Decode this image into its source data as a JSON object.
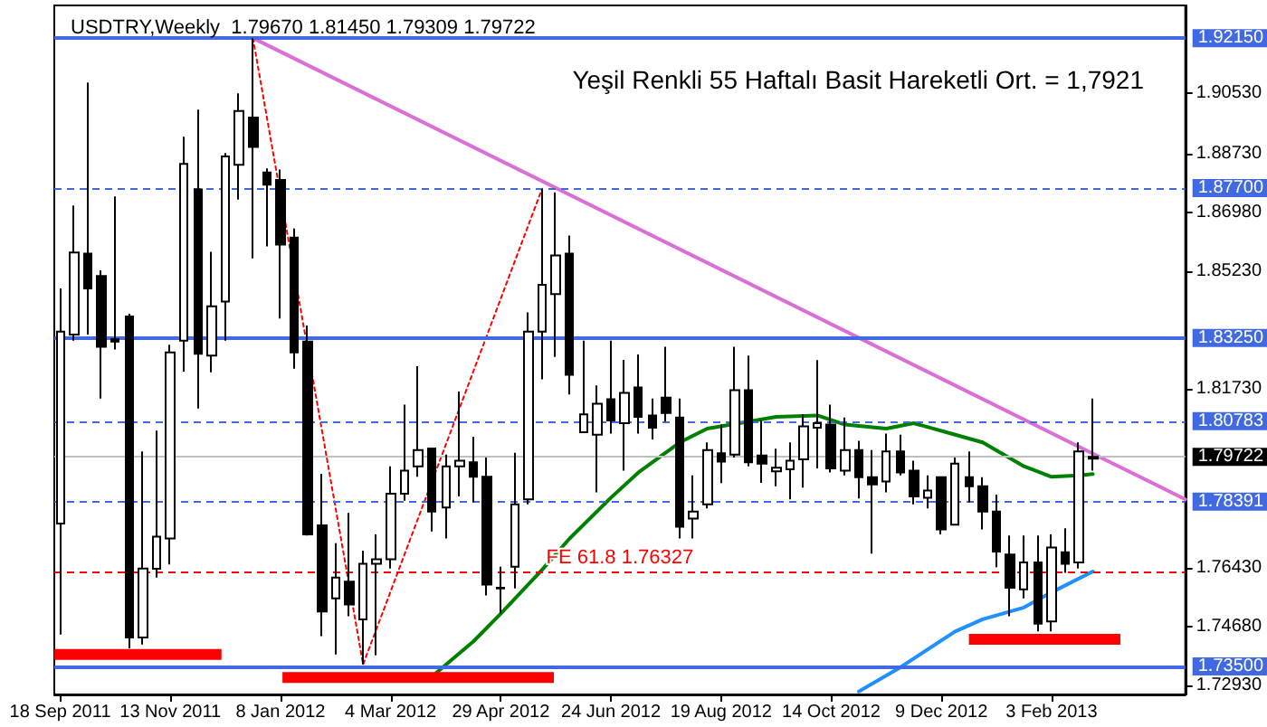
{
  "chart_data": {
    "type": "candlestick",
    "title": "USDTRY,Weekly  1.79670 1.81450 1.79309 1.79722",
    "annotations": [
      "Yeşil Renkli 55 Haftalı Basit Hareketli Ort. = 1,7921"
    ],
    "x": [
      "2011-09-18",
      "2011-09-25",
      "2011-10-02",
      "2011-10-09",
      "2011-10-16",
      "2011-10-23",
      "2011-10-30",
      "2011-11-06",
      "2011-11-13",
      "2011-11-20",
      "2011-11-27",
      "2011-12-04",
      "2011-12-11",
      "2011-12-18",
      "2011-12-25",
      "2012-01-01",
      "2012-01-08",
      "2012-01-15",
      "2012-01-22",
      "2012-01-29",
      "2012-02-05",
      "2012-02-12",
      "2012-02-19",
      "2012-02-26",
      "2012-03-04",
      "2012-03-11",
      "2012-03-18",
      "2012-03-25",
      "2012-04-01",
      "2012-04-08",
      "2012-04-15",
      "2012-04-22",
      "2012-04-29",
      "2012-05-06",
      "2012-05-13",
      "2012-05-20",
      "2012-05-27",
      "2012-06-03",
      "2012-06-10",
      "2012-06-17",
      "2012-06-24",
      "2012-07-01",
      "2012-07-08",
      "2012-07-15",
      "2012-07-22",
      "2012-07-29",
      "2012-08-05",
      "2012-08-12",
      "2012-08-19",
      "2012-08-26",
      "2012-09-02",
      "2012-09-09",
      "2012-09-16",
      "2012-09-23",
      "2012-09-30",
      "2012-10-07",
      "2012-10-14",
      "2012-10-21",
      "2012-10-28",
      "2012-11-04",
      "2012-11-11",
      "2012-11-18",
      "2012-11-25",
      "2012-12-02",
      "2012-12-09",
      "2012-12-16",
      "2012-12-23",
      "2012-12-30",
      "2013-01-06",
      "2013-01-13",
      "2013-01-20",
      "2013-01-27",
      "2013-02-03",
      "2013-02-10",
      "2013-02-17",
      "2013-02-24"
    ],
    "ohlc": [
      [
        1.7774,
        1.8472,
        1.7445,
        1.8344
      ],
      [
        1.8335,
        1.8718,
        1.8317,
        1.8579
      ],
      [
        1.8575,
        1.9083,
        1.8335,
        1.8472
      ],
      [
        1.8509,
        1.8526,
        1.8145,
        1.8299
      ],
      [
        1.8321,
        1.8745,
        1.8291,
        1.8314
      ],
      [
        1.8389,
        1.8397,
        1.7404,
        1.7436
      ],
      [
        1.7436,
        1.7988,
        1.7415,
        1.7641
      ],
      [
        1.764,
        1.805,
        1.7614,
        1.7735
      ],
      [
        1.773,
        1.8305,
        1.7653,
        1.8282
      ],
      [
        1.8317,
        1.8922,
        1.8225,
        1.8842
      ],
      [
        1.8766,
        1.9003,
        1.8116,
        1.8278
      ],
      [
        1.8273,
        1.8581,
        1.8223,
        1.8419
      ],
      [
        1.8433,
        1.8874,
        1.8317,
        1.8864
      ],
      [
        1.8839,
        1.9051,
        1.8736,
        1.8999
      ],
      [
        1.8979,
        1.9215,
        1.8561,
        1.8892
      ],
      [
        1.8816,
        1.8828,
        1.8597,
        1.878
      ],
      [
        1.8794,
        1.8825,
        1.8383,
        1.8602
      ],
      [
        1.8623,
        1.865,
        1.8234,
        1.8282
      ],
      [
        1.8314,
        1.8362,
        1.7739,
        1.7742
      ],
      [
        1.7769,
        1.7922,
        1.744,
        1.7513
      ],
      [
        1.7552,
        1.7716,
        1.7386,
        1.7614
      ],
      [
        1.7602,
        1.7806,
        1.7499,
        1.7534
      ],
      [
        1.749,
        1.7694,
        1.7356,
        1.7655
      ],
      [
        1.7655,
        1.7742,
        1.7383,
        1.7668
      ],
      [
        1.7668,
        1.7944,
        1.7641,
        1.7863
      ],
      [
        1.7863,
        1.8127,
        1.7842,
        1.7931
      ],
      [
        1.7944,
        1.8241,
        1.7913,
        1.7992
      ],
      [
        1.7997,
        1.7997,
        1.7751,
        1.781
      ],
      [
        1.7822,
        1.7979,
        1.773,
        1.7944
      ],
      [
        1.7944,
        1.8166,
        1.7855,
        1.7961
      ],
      [
        1.7956,
        1.8032,
        1.7837,
        1.7913
      ],
      [
        1.7913,
        1.797,
        1.7561,
        1.7593
      ],
      [
        1.7582,
        1.7646,
        1.7507,
        1.7584
      ],
      [
        1.7646,
        1.7984,
        1.7582,
        1.7831
      ],
      [
        1.7846,
        1.8401,
        1.7831,
        1.8344
      ],
      [
        1.8344,
        1.8768,
        1.8202,
        1.8483
      ],
      [
        1.8455,
        1.8757,
        1.8269,
        1.857
      ],
      [
        1.8575,
        1.8629,
        1.8157,
        1.8216
      ],
      [
        1.8045,
        1.8317,
        1.8045,
        1.8098
      ],
      [
        1.8038,
        1.8184,
        1.7867,
        1.813
      ],
      [
        1.8143,
        1.8317,
        1.8041,
        1.808
      ],
      [
        1.8072,
        1.826,
        1.7931,
        1.8162
      ],
      [
        1.8178,
        1.8276,
        1.8041,
        1.8091
      ],
      [
        1.8095,
        1.8145,
        1.8024,
        1.8059
      ],
      [
        1.8148,
        1.8299,
        1.8077,
        1.8102
      ],
      [
        1.8089,
        1.8145,
        1.773,
        1.7765
      ],
      [
        1.7789,
        1.7917,
        1.773,
        1.781
      ],
      [
        1.7831,
        1.8015,
        1.7819,
        1.7992
      ],
      [
        1.7983,
        1.8068,
        1.7894,
        1.7958
      ],
      [
        1.7979,
        1.8299,
        1.797,
        1.817
      ],
      [
        1.817,
        1.8273,
        1.7944,
        1.7956
      ],
      [
        1.7976,
        1.8081,
        1.7895,
        1.7952
      ],
      [
        1.7929,
        1.7996,
        1.7885,
        1.794
      ],
      [
        1.7935,
        1.8015,
        1.7846,
        1.7961
      ],
      [
        1.7965,
        1.8098,
        1.7881,
        1.8063
      ],
      [
        1.8059,
        1.8259,
        1.7938,
        1.8072
      ],
      [
        1.8068,
        1.8127,
        1.7926,
        1.7938
      ],
      [
        1.7931,
        1.8089,
        1.7917,
        1.7992
      ],
      [
        1.7992,
        1.802,
        1.7849,
        1.7912
      ],
      [
        1.7912,
        1.7992,
        1.7685,
        1.789
      ],
      [
        1.7899,
        1.8041,
        1.7867,
        1.7988
      ],
      [
        1.7988,
        1.8038,
        1.7917,
        1.7926
      ],
      [
        1.7931,
        1.7961,
        1.7831,
        1.7855
      ],
      [
        1.7851,
        1.7917,
        1.7819,
        1.7872
      ],
      [
        1.7912,
        1.7912,
        1.7742,
        1.7757
      ],
      [
        1.7771,
        1.797,
        1.7769,
        1.7952
      ],
      [
        1.7912,
        1.7988,
        1.7837,
        1.7885
      ],
      [
        1.7885,
        1.7912,
        1.7757,
        1.781
      ],
      [
        1.781,
        1.786,
        1.7645,
        1.7691
      ],
      [
        1.7682,
        1.7739,
        1.7499,
        1.7584
      ],
      [
        1.7579,
        1.7739,
        1.7552,
        1.7659
      ],
      [
        1.7659,
        1.7739,
        1.7454,
        1.7477
      ],
      [
        1.7484,
        1.7742,
        1.7454,
        1.7703
      ],
      [
        1.7689,
        1.776,
        1.7628,
        1.7655
      ],
      [
        1.7659,
        1.8015,
        1.7641,
        1.7988
      ],
      [
        1.7967,
        1.8145,
        1.79309,
        1.79722
      ]
    ],
    "series": [
      {
        "type": "line",
        "color": "#da70d6",
        "line_style": "solid",
        "x": [
          "2011-12-25",
          "2013-04-12"
        ],
        "values": [
          1.9215,
          1.7846
        ]
      },
      {
        "type": "line",
        "color": "#ff0000",
        "line_style": "dotted",
        "x": [
          "2011-12-25",
          "2012-02-19",
          "2012-05-20"
        ],
        "values": [
          1.9215,
          1.7356,
          1.8768
        ]
      },
      {
        "type": "line",
        "color": "#008000",
        "line_style": "solid",
        "x": [
          "2012-03-25",
          "2012-04-15",
          "2012-04-29",
          "2012-05-20",
          "2012-06-03",
          "2012-06-24",
          "2012-07-08",
          "2012-07-29",
          "2012-08-12",
          "2012-09-02",
          "2012-09-16",
          "2012-10-07",
          "2012-10-21",
          "2012-11-11",
          "2012-11-25",
          "2012-12-16",
          "2012-12-30",
          "2013-01-20",
          "2013-02-03",
          "2013-02-17",
          "2013-02-24"
        ],
        "values": [
          1.732,
          1.7424,
          1.7507,
          1.7637,
          1.773,
          1.7851,
          1.7926,
          1.8015,
          1.8056,
          1.8077,
          1.8091,
          1.8095,
          1.8068,
          1.8056,
          1.8072,
          1.8038,
          1.8015,
          1.7944,
          1.7913,
          1.7917,
          1.7921
        ]
      },
      {
        "type": "line",
        "color": "#1e90ff",
        "line_style": "solid",
        "x": [
          "2012-10-28",
          "2012-11-18",
          "2012-12-16",
          "2012-12-30",
          "2013-01-20",
          "2013-02-03",
          "2013-02-24"
        ],
        "values": [
          1.7276,
          1.7347,
          1.7454,
          1.749,
          1.7525,
          1.757,
          1.7632
        ]
      },
      {
        "type": "line",
        "color": "#ff0000",
        "line_style": "solid",
        "x": [
          "2011-09-15",
          "2011-12-09"
        ],
        "values": [
          1.7386,
          1.7386
        ]
      },
      {
        "type": "line",
        "color": "#ff0000",
        "line_style": "solid",
        "x": [
          "2012-01-09",
          "2012-05-26"
        ],
        "values": [
          1.7317,
          1.7317
        ]
      },
      {
        "type": "line",
        "color": "#ff0000",
        "line_style": "solid",
        "x": [
          "2012-12-23",
          "2013-03-10"
        ],
        "values": [
          1.7431,
          1.7431
        ]
      }
    ],
    "marker": "none",
    "xlim": [
      "2011-09-15",
      "2013-04-12"
    ],
    "xticks": [
      {
        "value": "2011-09-18",
        "label": "18 Sep 2011"
      },
      {
        "value": "2011-11-13",
        "label": "13 Nov 2011"
      },
      {
        "value": "2012-01-08",
        "label": "8 Jan 2012"
      },
      {
        "value": "2012-03-04",
        "label": "4 Mar 2012"
      },
      {
        "value": "2012-04-29",
        "label": "29 Apr 2012"
      },
      {
        "value": "2012-06-24",
        "label": "24 Jun 2012"
      },
      {
        "value": "2012-08-19",
        "label": "19 Aug 2012"
      },
      {
        "value": "2012-10-14",
        "label": "14 Oct 2012"
      },
      {
        "value": "2012-12-09",
        "label": "9 Dec 2012"
      },
      {
        "value": "2013-02-03",
        "label": "3 Feb 2013"
      }
    ],
    "ylim": [
      1.7267,
      1.9312
    ],
    "yticks": [
      {
        "value": 1.7293,
        "label": "1.72930"
      },
      {
        "value": 1.7468,
        "label": "1.74680"
      },
      {
        "value": 1.7643,
        "label": "1.76430"
      },
      {
        "value": 1.8173,
        "label": "1.81730"
      },
      {
        "value": 1.8523,
        "label": "1.85230"
      },
      {
        "value": 1.8698,
        "label": "1.86980"
      },
      {
        "value": 1.8873,
        "label": "1.88730"
      },
      {
        "value": 1.9053,
        "label": "1.90530"
      }
    ],
    "ref_lines": [
      {
        "axis": "y",
        "value": 1.9215,
        "label": "1.92150",
        "color": "#4169e1",
        "line_style": "solid"
      },
      {
        "axis": "y",
        "value": 1.877,
        "label": "1.87700",
        "color": "#4169e1",
        "line_style": "dashed"
      },
      {
        "axis": "y",
        "value": 1.8325,
        "label": "1.83250",
        "color": "#4169e1",
        "line_style": "solid"
      },
      {
        "axis": "y",
        "value": 1.80783,
        "label": "1.80783",
        "color": "#4169e1",
        "line_style": "dashed"
      },
      {
        "axis": "y",
        "value": 1.79722,
        "label": "1.79722",
        "color": "#c0c0c0",
        "line_style": "solid"
      },
      {
        "axis": "y",
        "value": 1.78391,
        "label": "1.78391",
        "color": "#4169e1",
        "line_style": "dashed"
      },
      {
        "axis": "y",
        "value": 1.76327,
        "label": "FE 61.8 1.76327",
        "color": "#ff0000",
        "line_style": "dashed"
      },
      {
        "axis": "y",
        "value": 1.735,
        "label": "1.73500",
        "color": "#4169e1",
        "line_style": "solid"
      }
    ]
  }
}
